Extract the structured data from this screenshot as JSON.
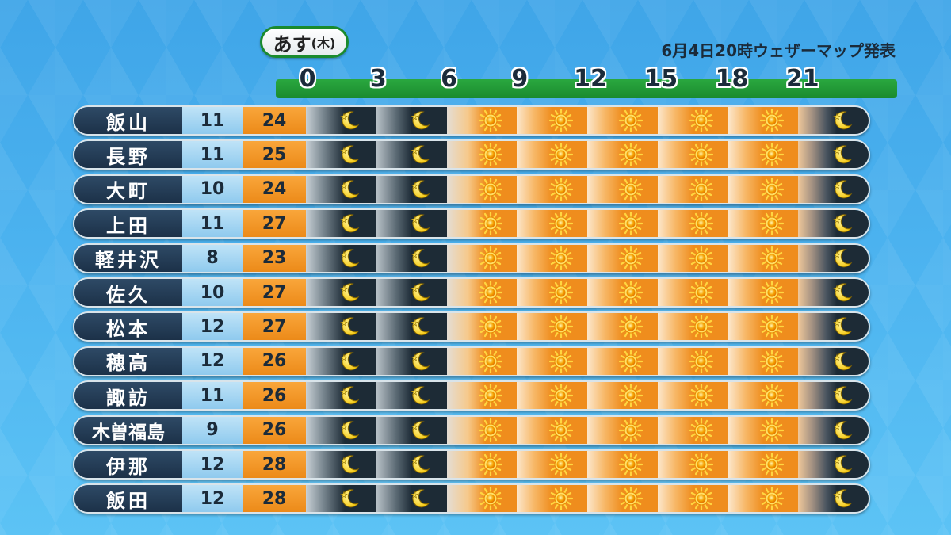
{
  "header": {
    "day_main": "あす",
    "day_sub": "(木)",
    "issued": "6月4日20時ウェザーマップ発表"
  },
  "times": [
    "0",
    "3",
    "6",
    "9",
    "12",
    "15",
    "18",
    "21"
  ],
  "icons": {
    "night": "crescent-moon-star-icon",
    "day": "sun-icon"
  },
  "colors": {
    "header_bar": "#1a8a2e",
    "city_bg": "#1c3148",
    "min_bg": "#8fcaee",
    "max_bg": "#ec8a19",
    "night_bg": "#1d2b36",
    "day_bg": "#ef8d1d"
  },
  "rows": [
    {
      "city": "飯山",
      "min": "11",
      "max": "24",
      "slots": [
        "night",
        "night",
        "day",
        "day",
        "day",
        "day",
        "day",
        "night"
      ]
    },
    {
      "city": "長野",
      "min": "11",
      "max": "25",
      "slots": [
        "night",
        "night",
        "day",
        "day",
        "day",
        "day",
        "day",
        "night"
      ]
    },
    {
      "city": "大町",
      "min": "10",
      "max": "24",
      "slots": [
        "night",
        "night",
        "day",
        "day",
        "day",
        "day",
        "day",
        "night"
      ]
    },
    {
      "city": "上田",
      "min": "11",
      "max": "27",
      "slots": [
        "night",
        "night",
        "day",
        "day",
        "day",
        "day",
        "day",
        "night"
      ]
    },
    {
      "city": "軽井沢",
      "min": "8",
      "max": "23",
      "slots": [
        "night",
        "night",
        "day",
        "day",
        "day",
        "day",
        "day",
        "night"
      ]
    },
    {
      "city": "佐久",
      "min": "10",
      "max": "27",
      "slots": [
        "night",
        "night",
        "day",
        "day",
        "day",
        "day",
        "day",
        "night"
      ]
    },
    {
      "city": "松本",
      "min": "12",
      "max": "27",
      "slots": [
        "night",
        "night",
        "day",
        "day",
        "day",
        "day",
        "day",
        "night"
      ]
    },
    {
      "city": "穂高",
      "min": "12",
      "max": "26",
      "slots": [
        "night",
        "night",
        "day",
        "day",
        "day",
        "day",
        "day",
        "night"
      ]
    },
    {
      "city": "諏訪",
      "min": "11",
      "max": "26",
      "slots": [
        "night",
        "night",
        "day",
        "day",
        "day",
        "day",
        "day",
        "night"
      ]
    },
    {
      "city": "木曽福島",
      "min": "9",
      "max": "26",
      "slots": [
        "night",
        "night",
        "day",
        "day",
        "day",
        "day",
        "day",
        "night"
      ]
    },
    {
      "city": "伊那",
      "min": "12",
      "max": "28",
      "slots": [
        "night",
        "night",
        "day",
        "day",
        "day",
        "day",
        "day",
        "night"
      ]
    },
    {
      "city": "飯田",
      "min": "12",
      "max": "28",
      "slots": [
        "night",
        "night",
        "day",
        "day",
        "day",
        "day",
        "day",
        "night"
      ]
    }
  ]
}
